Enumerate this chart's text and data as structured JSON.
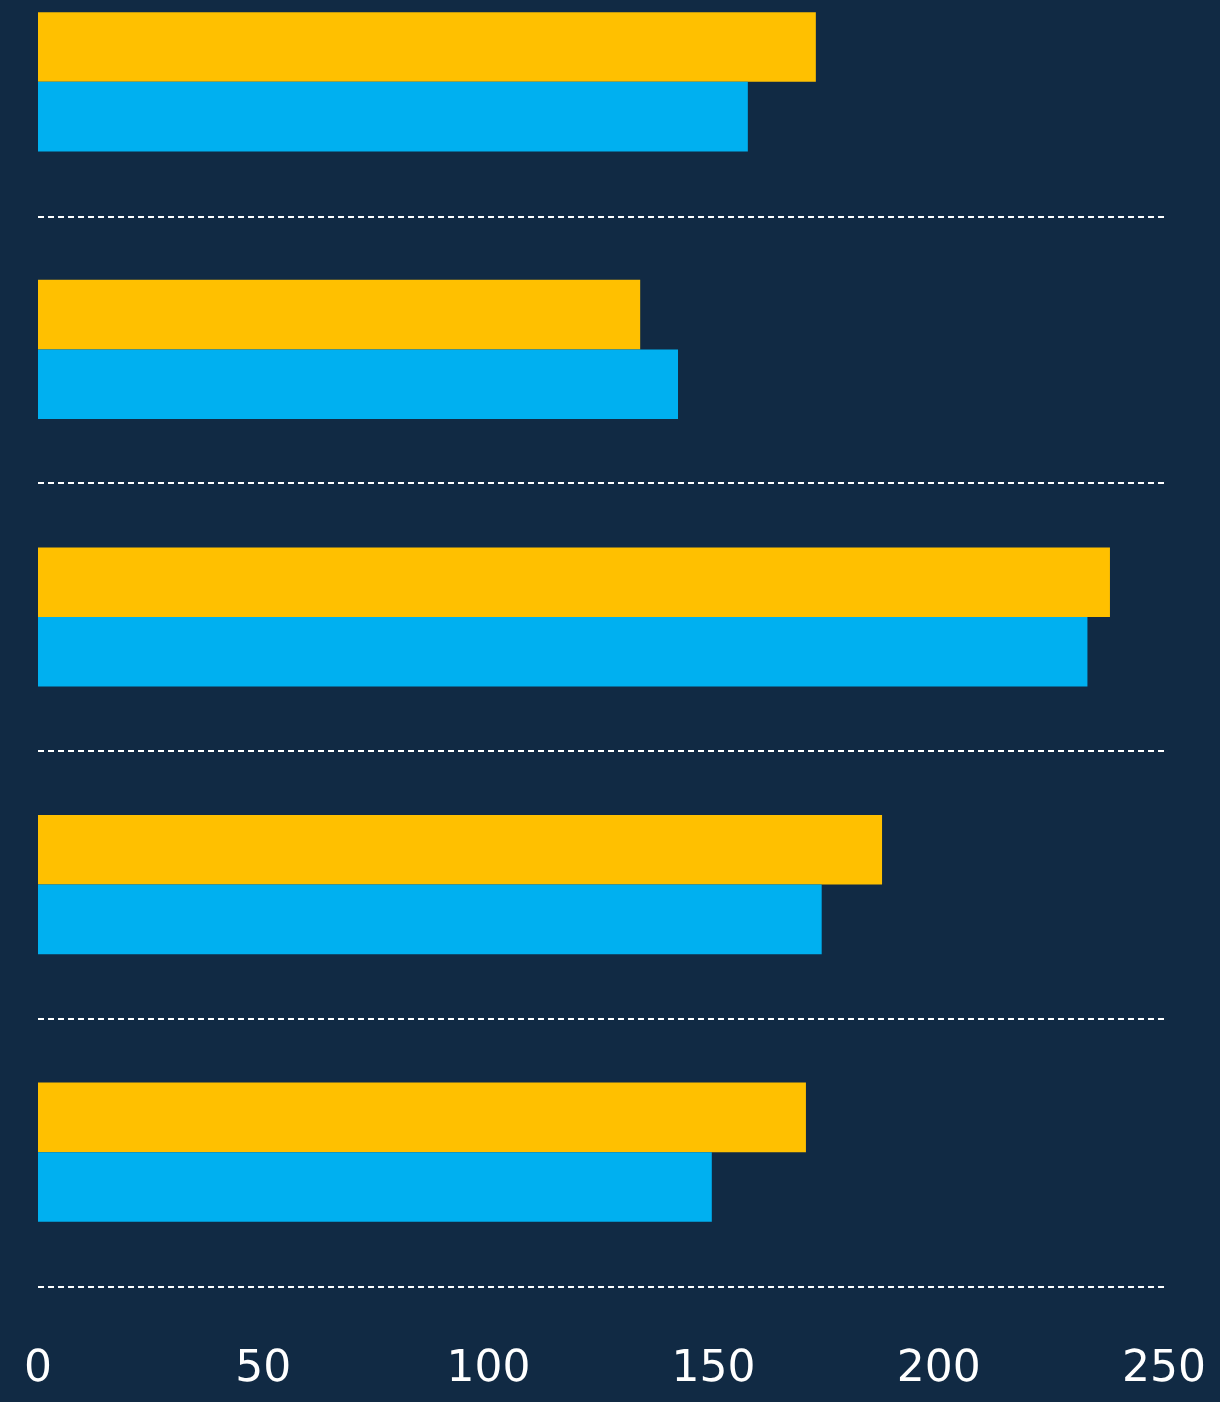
{
  "chart_data": {
    "type": "bar",
    "orientation": "horizontal",
    "categories": [
      null,
      null,
      null,
      null,
      null
    ],
    "series": [
      {
        "color": "#ffc000",
        "values": [
          172.7,
          133.7,
          238,
          187.4,
          170.5
        ]
      },
      {
        "color": "#00b0f0",
        "values": [
          157.6,
          142.1,
          233,
          174,
          149.6
        ]
      }
    ],
    "xlim": [
      0,
      250
    ],
    "xticks": [
      0,
      50,
      100,
      150,
      200,
      250
    ],
    "grid": "y"
  }
}
